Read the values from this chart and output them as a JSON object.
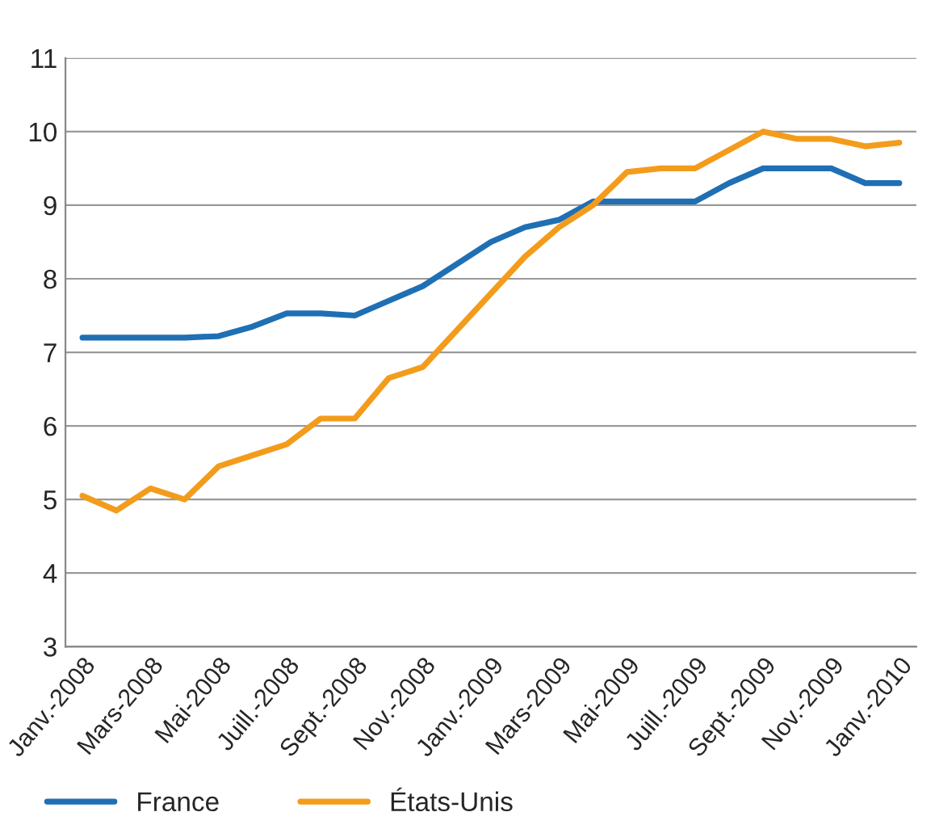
{
  "chart_data": {
    "type": "line",
    "categories": [
      "Janv.-2008",
      null,
      "Mars-2008",
      null,
      "Mai-2008",
      null,
      "Juill.-2008",
      null,
      "Sept.-2008",
      null,
      "Nov.-2008",
      null,
      "Janv.-2009",
      null,
      "Mars-2009",
      null,
      "Mai-2009",
      null,
      "Juill.-2009",
      null,
      "Sept.-2009",
      null,
      "Nov.-2009",
      null,
      "Janv.-2010"
    ],
    "series": [
      {
        "name": "France",
        "color": "#1f6fb4",
        "values": [
          7.2,
          7.2,
          7.2,
          7.2,
          7.22,
          7.35,
          7.53,
          7.53,
          7.5,
          7.7,
          7.9,
          8.2,
          8.5,
          8.7,
          8.8,
          9.05,
          9.05,
          9.05,
          9.05,
          9.3,
          9.5,
          9.5,
          9.5,
          9.3,
          9.3
        ]
      },
      {
        "name": "États-Unis",
        "color": "#f39c1c",
        "values": [
          5.05,
          4.85,
          5.15,
          5.0,
          5.45,
          5.6,
          5.75,
          6.1,
          6.1,
          6.65,
          6.8,
          7.3,
          7.8,
          8.3,
          8.7,
          9.0,
          9.45,
          9.5,
          9.5,
          9.75,
          10.0,
          9.9,
          9.9,
          9.8,
          9.85
        ]
      }
    ],
    "ylim": [
      3,
      11
    ],
    "yticks": [
      3,
      4,
      5,
      6,
      7,
      8,
      9,
      10,
      11
    ],
    "grid": "y",
    "legend": "bottom left",
    "line_style": "solid",
    "marker": "none"
  }
}
